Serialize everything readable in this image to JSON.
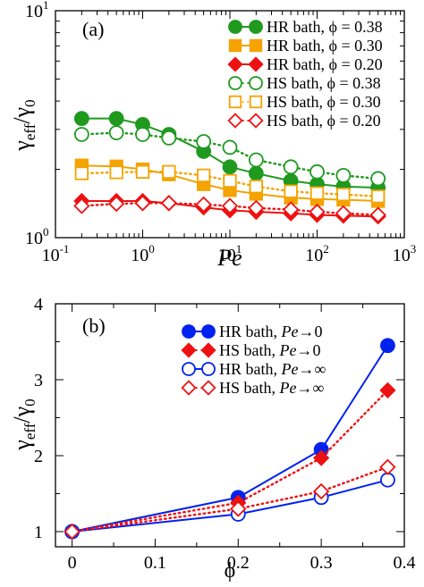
{
  "figure": {
    "background": "#ffffff"
  },
  "chart_data": [
    {
      "type": "line",
      "panel_label": "(a)",
      "xlabel": "Pe",
      "ylabel_main": "γ",
      "ylabel_sub1": "eff",
      "ylabel_mid": "/γ",
      "ylabel_sub2": "0",
      "x_scale": "log",
      "y_scale": "log",
      "xlim": [
        0.1,
        1000
      ],
      "ylim": [
        1,
        10
      ],
      "x_tick_labels": [
        {
          "value": 0.1,
          "base": "10",
          "exp": "-1"
        },
        {
          "value": 1,
          "base": "10",
          "exp": "0"
        },
        {
          "value": 10,
          "base": "10",
          "exp": "1"
        },
        {
          "value": 100,
          "base": "10",
          "exp": "2"
        },
        {
          "value": 1000,
          "base": "10",
          "exp": "3"
        }
      ],
      "y_tick_labels": [
        {
          "value": 1,
          "base": "10",
          "exp": "0"
        },
        {
          "value": 10,
          "base": "10",
          "exp": "1"
        }
      ],
      "legend_position": "top-right",
      "x": [
        0.2,
        0.5,
        1,
        2,
        5,
        10,
        20,
        50,
        100,
        200,
        500
      ],
      "series": [
        {
          "name": "HR bath, ϕ = 0.38",
          "color": "#1f9a1f",
          "marker": "circle",
          "filled": true,
          "line": "solid",
          "values": [
            3.35,
            3.35,
            3.15,
            2.85,
            2.4,
            2.05,
            1.92,
            1.78,
            1.72,
            1.68,
            1.66
          ]
        },
        {
          "name": "HR bath, ϕ = 0.30",
          "color": "#f4a300",
          "marker": "square",
          "filled": true,
          "line": "solid",
          "values": [
            2.08,
            2.06,
            2.0,
            1.9,
            1.72,
            1.62,
            1.56,
            1.5,
            1.48,
            1.47,
            1.45
          ]
        },
        {
          "name": "HR bath, ϕ = 0.20",
          "color": "#ee1111",
          "marker": "diamond",
          "filled": true,
          "line": "solid",
          "values": [
            1.45,
            1.45,
            1.45,
            1.42,
            1.36,
            1.32,
            1.3,
            1.28,
            1.26,
            1.25,
            1.24
          ]
        },
        {
          "name": "HS bath, ϕ = 0.38",
          "color": "#1f9a1f",
          "marker": "circle",
          "filled": false,
          "line": "dotted",
          "values": [
            2.85,
            2.9,
            2.85,
            2.75,
            2.65,
            2.5,
            2.2,
            2.05,
            1.95,
            1.88,
            1.82
          ]
        },
        {
          "name": "HS bath, ϕ = 0.30",
          "color": "#f4a300",
          "marker": "square",
          "filled": false,
          "line": "dotted",
          "values": [
            1.92,
            1.94,
            1.95,
            1.95,
            1.88,
            1.78,
            1.68,
            1.6,
            1.57,
            1.55,
            1.52
          ]
        },
        {
          "name": "HS bath, ϕ = 0.20",
          "color": "#ee1111",
          "marker": "diamond",
          "filled": false,
          "line": "dotted",
          "values": [
            1.38,
            1.41,
            1.42,
            1.42,
            1.4,
            1.38,
            1.35,
            1.33,
            1.3,
            1.28,
            1.26
          ]
        }
      ]
    },
    {
      "type": "line",
      "panel_label": "(b)",
      "xlabel": "ϕ",
      "ylabel_main": "γ",
      "ylabel_sub1": "eff",
      "ylabel_mid": "/γ",
      "ylabel_sub2": "0",
      "x_scale": "linear",
      "y_scale": "linear",
      "xlim": [
        -0.02,
        0.4
      ],
      "ylim": [
        0.8,
        4
      ],
      "x_ticks": [
        0,
        0.1,
        0.2,
        0.3,
        0.4
      ],
      "x_tick_labels": [
        "0",
        "0.1",
        "0.2",
        "0.3",
        "0.4"
      ],
      "y_ticks": [
        1,
        2,
        3,
        4
      ],
      "y_tick_labels": [
        "1",
        "2",
        "3",
        "4"
      ],
      "legend_position": "top-left",
      "x": [
        0,
        0.2,
        0.3,
        0.38
      ],
      "series": [
        {
          "name_prefix": "HR bath, ",
          "name_italic": "Pe",
          "name_suffix": "→0",
          "color": "#0022ee",
          "marker": "circle",
          "filled": true,
          "line": "solid",
          "values": [
            1.0,
            1.45,
            2.08,
            3.45
          ]
        },
        {
          "name_prefix": "HS bath, ",
          "name_italic": "Pe",
          "name_suffix": "→0",
          "color": "#ee1111",
          "marker": "diamond",
          "filled": true,
          "line": "dotted",
          "values": [
            1.0,
            1.38,
            1.97,
            2.86
          ]
        },
        {
          "name_prefix": "HR bath, ",
          "name_italic": "Pe",
          "name_suffix": "→∞",
          "color": "#0022ee",
          "marker": "circle",
          "filled": false,
          "line": "solid",
          "values": [
            1.0,
            1.23,
            1.45,
            1.68
          ]
        },
        {
          "name_prefix": "HS bath, ",
          "name_italic": "Pe",
          "name_suffix": "→∞",
          "color": "#ee1111",
          "marker": "diamond",
          "filled": false,
          "line": "dotted",
          "values": [
            1.0,
            1.3,
            1.53,
            1.85
          ]
        }
      ]
    }
  ]
}
